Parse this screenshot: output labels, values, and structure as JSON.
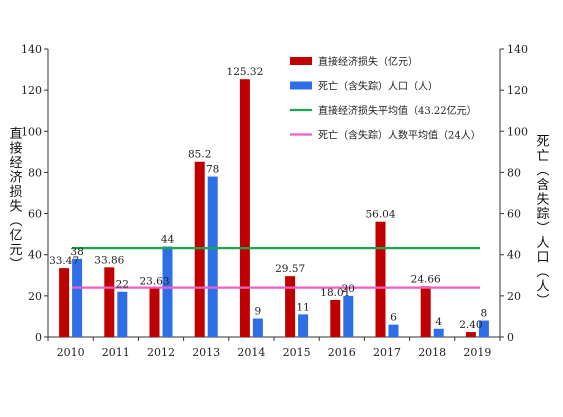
{
  "chart_data": {
    "type": "bar",
    "title": "",
    "categories": [
      "2010",
      "2011",
      "2012",
      "2013",
      "2014",
      "2015",
      "2016",
      "2017",
      "2018",
      "2019"
    ],
    "series": [
      {
        "name": "直接经济损失（亿元）",
        "axis": "left",
        "color": "#c00000",
        "values": [
          33.47,
          33.86,
          23.63,
          85.2,
          125.32,
          29.57,
          18.01,
          56.04,
          24.66,
          2.4
        ],
        "labels": [
          "33.47",
          "33.86",
          "23.63",
          "85.2",
          "125.32",
          "29.57",
          "18.01",
          "56.04",
          "24.66",
          "2.40"
        ]
      },
      {
        "name": "死亡（含失踪）人口（人）",
        "axis": "right",
        "color": "#2e6fe8",
        "values": [
          38,
          22,
          44,
          78,
          9,
          11,
          20,
          6,
          4,
          8
        ],
        "labels": [
          "38",
          "22",
          "44",
          "78",
          "9",
          "11",
          "20",
          "6",
          "4",
          "8"
        ]
      }
    ],
    "reference_lines": [
      {
        "name": "直接经济损失平均值（43.22亿元）",
        "axis": "left",
        "value": 43.22,
        "color": "#1aa84f"
      },
      {
        "name": "死亡（含失踪）人数平均值（24人）",
        "axis": "right",
        "value": 24,
        "color": "#ee5fc8"
      }
    ],
    "ylabel_left": "直接经济损失（亿元）",
    "ylabel_right": "死亡（含失踪）人口（人）",
    "ylim_left": [
      0,
      140
    ],
    "ylim_right": [
      0,
      140
    ],
    "yticks_left": [
      "0",
      "20",
      "40",
      "60",
      "80",
      "100",
      "120",
      "140"
    ],
    "yticks_right": [
      "0",
      "20",
      "40",
      "60",
      "80",
      "100",
      "120",
      "140"
    ],
    "grid": false,
    "legend_position": "top-right"
  }
}
